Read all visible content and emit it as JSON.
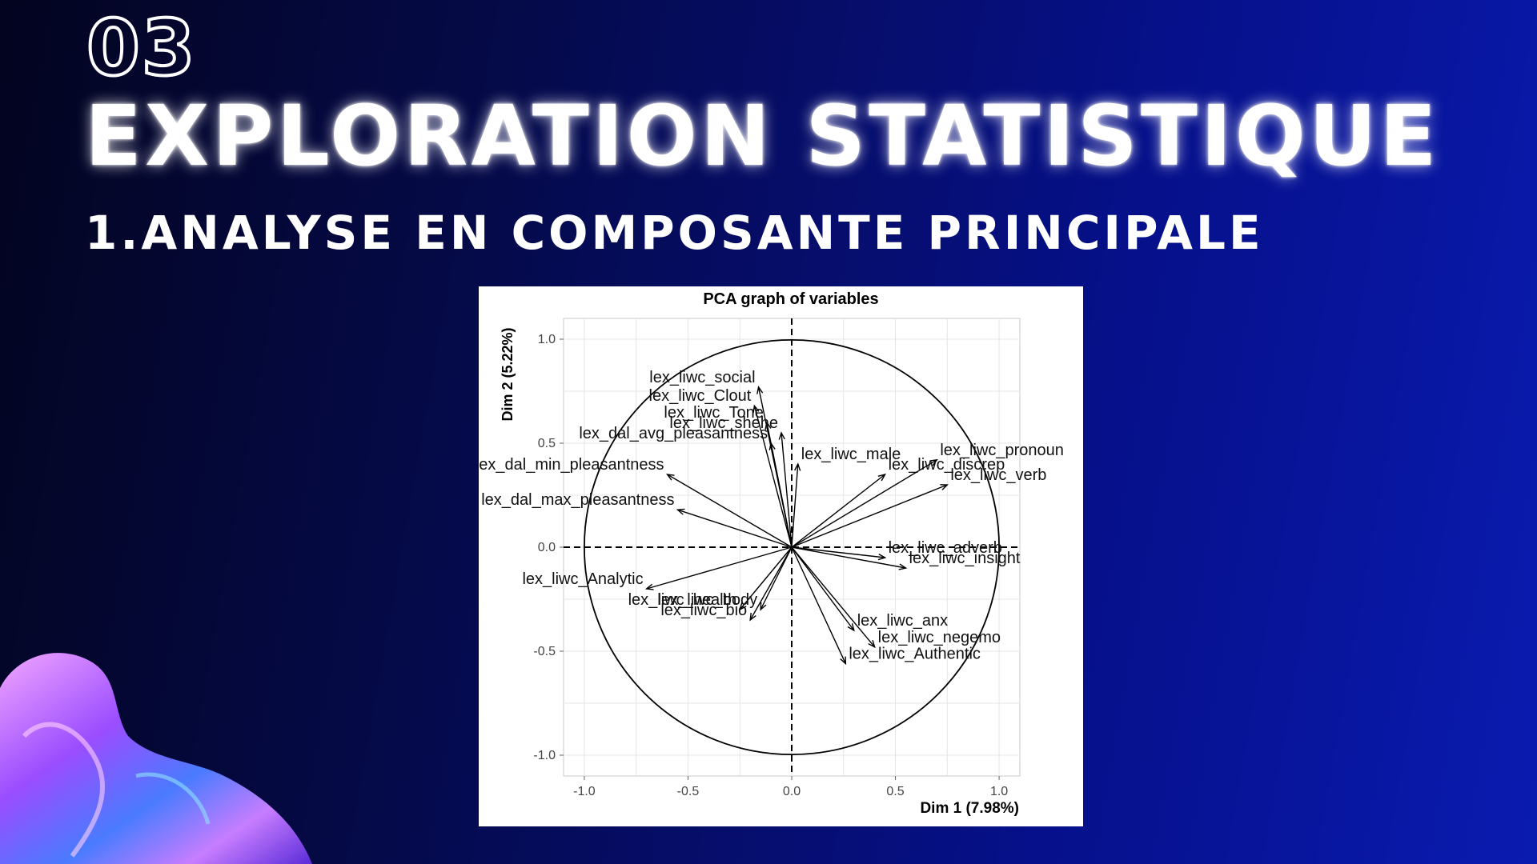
{
  "slide": {
    "number": "03",
    "title": "EXPLORATION STATISTIQUE",
    "subtitle": "1.ANALYSE EN COMPOSANTE PRINCIPALE"
  },
  "chart_data": {
    "type": "scatter",
    "title": "PCA graph of variables",
    "xlabel": "Dim 1 (7.98%)",
    "ylabel": "Dim 2 (5.22%)",
    "xlim": [
      -1.1,
      1.1
    ],
    "ylim": [
      -1.1,
      1.1
    ],
    "x_ticks": [
      "-1.0",
      "-0.5",
      "0.0",
      "0.5",
      "1.0"
    ],
    "y_ticks": [
      "-1.0",
      "-0.5",
      "0.0",
      "0.5",
      "1.0"
    ],
    "grid": true,
    "unit_circle": true,
    "arrow_color": "#000000",
    "variables": [
      {
        "label": "lex_liwc_social",
        "x": -0.16,
        "y": 0.77
      },
      {
        "label": "lex_liwc_Clout",
        "x": -0.18,
        "y": 0.68
      },
      {
        "label": "lex_liwc_Tone",
        "x": -0.12,
        "y": 0.6
      },
      {
        "label": "lex_liwc_shehe",
        "x": -0.05,
        "y": 0.55
      },
      {
        "label": "lex_dal_avg_pleasantness",
        "x": -0.1,
        "y": 0.5
      },
      {
        "label": "lex_liwc_male",
        "x": 0.03,
        "y": 0.4
      },
      {
        "label": "lex_liwc_discrep",
        "x": 0.45,
        "y": 0.35
      },
      {
        "label": "lex_liwc_pronoun",
        "x": 0.7,
        "y": 0.42
      },
      {
        "label": "lex_liwc_verb",
        "x": 0.75,
        "y": 0.3
      },
      {
        "label": "lex_liwc_adverb",
        "x": 0.45,
        "y": -0.05
      },
      {
        "label": "lex_liwc_insight",
        "x": 0.55,
        "y": -0.1
      },
      {
        "label": "lex_liwc_anx",
        "x": 0.3,
        "y": -0.4
      },
      {
        "label": "lex_liwc_negemo",
        "x": 0.4,
        "y": -0.48
      },
      {
        "label": "lex_liwc_Authentic",
        "x": 0.26,
        "y": -0.56
      },
      {
        "label": "lex_liwc_bio",
        "x": -0.2,
        "y": -0.35
      },
      {
        "label": "lex_liwc_health",
        "x": -0.25,
        "y": -0.3
      },
      {
        "label": "lex_liwc_body",
        "x": -0.15,
        "y": -0.3
      },
      {
        "label": "lex_liwc_Analytic",
        "x": -0.7,
        "y": -0.2
      },
      {
        "label": "lex_dal_max_pleasantness",
        "x": -0.55,
        "y": 0.18
      },
      {
        "label": "lex_dal_min_pleasantness",
        "x": -0.6,
        "y": 0.35
      }
    ]
  }
}
